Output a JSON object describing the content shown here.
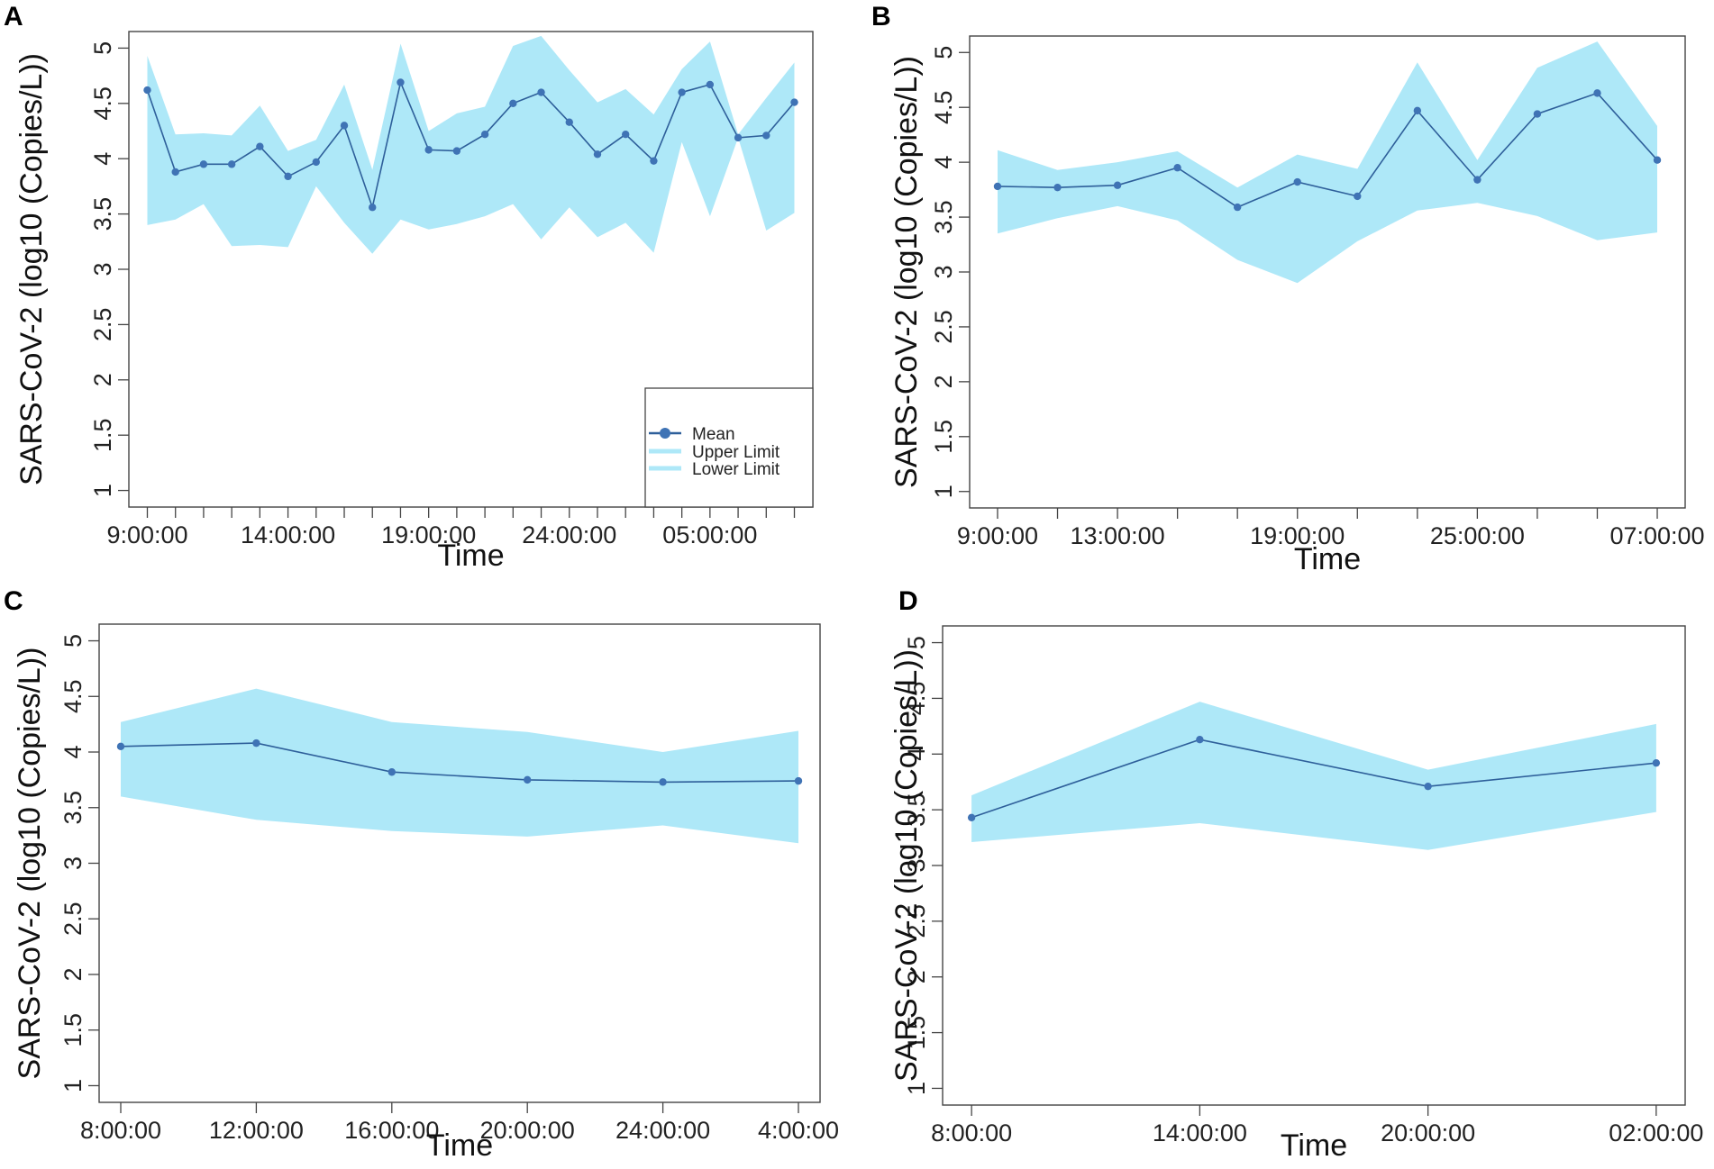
{
  "colors": {
    "band": "#aee8f8",
    "mean_line": "#2e5f9a",
    "mean_marker": "#3f73b5",
    "axis": "#444444"
  },
  "chart_data": [
    {
      "panel": "A",
      "type": "line",
      "title": "",
      "xlabel": "Time",
      "ylabel": "SARS-CoV-2 (log10 (Copies/L))",
      "ylim": [
        0.85,
        5.15
      ],
      "yticks": [
        1,
        1.5,
        2,
        2.5,
        3,
        3.5,
        4,
        4.5,
        5
      ],
      "ytick_labels": [
        "1",
        "1.5",
        "2",
        "2.5",
        "3",
        "3.5",
        "4",
        "4.5",
        "5"
      ],
      "x_count": 24,
      "xticks": [
        0,
        1,
        2,
        3,
        4,
        5,
        6,
        7,
        8,
        9,
        10,
        11,
        12,
        13,
        14,
        15,
        16,
        17,
        18,
        19,
        20,
        21,
        22,
        23
      ],
      "xtick_labels": [
        "9:00:00",
        "",
        "",
        "",
        "",
        "14:00:00",
        "",
        "",
        "",
        "",
        "19:00:00",
        "",
        "",
        "",
        "",
        "24:00:00",
        "",
        "",
        "",
        "",
        "05:00:00",
        "",
        "",
        ""
      ],
      "series": [
        {
          "name": "Mean",
          "values": [
            4.62,
            3.88,
            3.95,
            3.95,
            4.11,
            3.84,
            3.97,
            4.3,
            3.56,
            4.69,
            4.08,
            4.07,
            4.22,
            4.5,
            4.6,
            4.33,
            4.04,
            4.22,
            3.98,
            4.6,
            4.67,
            4.19,
            4.21,
            4.51
          ]
        },
        {
          "name": "Upper Limit",
          "values": [
            4.93,
            4.22,
            4.23,
            4.21,
            4.48,
            4.07,
            4.17,
            4.67,
            3.9,
            5.04,
            4.25,
            4.41,
            4.47,
            5.02,
            5.11,
            4.8,
            4.51,
            4.63,
            4.4,
            4.81,
            5.06,
            4.22,
            4.55,
            4.87
          ]
        },
        {
          "name": "Lower Limit",
          "values": [
            3.4,
            3.45,
            3.59,
            3.21,
            3.22,
            3.2,
            3.75,
            3.42,
            3.14,
            3.45,
            3.36,
            3.41,
            3.48,
            3.59,
            3.27,
            3.56,
            3.29,
            3.42,
            3.15,
            4.15,
            3.48,
            4.19,
            3.35,
            3.51
          ]
        }
      ],
      "legend": {
        "position": "bottom-right",
        "entries": [
          "Mean",
          "Upper Limit",
          "Lower Limit"
        ]
      }
    },
    {
      "panel": "B",
      "type": "line",
      "title": "",
      "xlabel": "Time",
      "ylabel": "SARS-CoV-2 (log10 (Copies/L))",
      "ylim": [
        0.85,
        5.15
      ],
      "yticks": [
        1,
        1.5,
        2,
        2.5,
        3,
        3.5,
        4,
        4.5,
        5
      ],
      "ytick_labels": [
        "1",
        "1.5",
        "2",
        "2.5",
        "3",
        "3.5",
        "4",
        "4.5",
        "5"
      ],
      "x_count": 12,
      "xticks": [
        0,
        1,
        2,
        3,
        4,
        5,
        6,
        7,
        8,
        9,
        10,
        11
      ],
      "xtick_labels": [
        "9:00:00",
        "",
        "13:00:00",
        "",
        "",
        "19:00:00",
        "",
        "",
        "25:00:00",
        "",
        "",
        "07:00:00"
      ],
      "series": [
        {
          "name": "Mean",
          "values": [
            3.78,
            3.77,
            3.79,
            3.95,
            3.59,
            3.82,
            3.69,
            4.47,
            3.84,
            4.44,
            4.63,
            4.02
          ]
        },
        {
          "name": "Upper Limit",
          "values": [
            4.11,
            3.93,
            4.0,
            4.1,
            3.77,
            4.07,
            3.94,
            4.91,
            4.02,
            4.86,
            5.1,
            4.33
          ]
        },
        {
          "name": "Lower Limit",
          "values": [
            3.35,
            3.49,
            3.6,
            3.47,
            3.11,
            2.9,
            3.28,
            3.56,
            3.63,
            3.51,
            3.29,
            3.36
          ]
        }
      ]
    },
    {
      "panel": "C",
      "type": "line",
      "title": "",
      "xlabel": "Time",
      "ylabel": "SARS-CoV-2 (log10 (Copies/L))",
      "ylim": [
        0.85,
        5.15
      ],
      "yticks": [
        1,
        1.5,
        2,
        2.5,
        3,
        3.5,
        4,
        4.5,
        5
      ],
      "ytick_labels": [
        "1",
        "1.5",
        "2",
        "2.5",
        "3",
        "3.5",
        "4",
        "4.5",
        "5"
      ],
      "x_count": 6,
      "xticks": [
        0,
        1,
        2,
        3,
        4,
        5
      ],
      "xtick_labels": [
        "8:00:00",
        "12:00:00",
        "16:00:00",
        "20:00:00",
        "24:00:00",
        "4:00:00"
      ],
      "series": [
        {
          "name": "Mean",
          "values": [
            4.05,
            4.08,
            3.82,
            3.75,
            3.73,
            3.74
          ]
        },
        {
          "name": "Upper Limit",
          "values": [
            4.27,
            4.57,
            4.27,
            4.18,
            4.0,
            4.19
          ]
        },
        {
          "name": "Lower Limit",
          "values": [
            3.6,
            3.39,
            3.29,
            3.24,
            3.34,
            3.18
          ]
        }
      ]
    },
    {
      "panel": "D",
      "type": "line",
      "title": "",
      "xlabel": "Time",
      "ylabel": "SARS-CoV-2 (log10 (Copies/L))",
      "ylim": [
        0.85,
        5.15
      ],
      "yticks": [
        1,
        1.5,
        2,
        2.5,
        3,
        3.5,
        4,
        4.5,
        5
      ],
      "ytick_labels": [
        "1",
        "1.5",
        "2",
        "2.5",
        "3",
        "3.5",
        "4",
        "4.5",
        "5"
      ],
      "x_count": 4,
      "xticks": [
        0,
        1,
        2,
        3
      ],
      "xtick_labels": [
        "8:00:00",
        "14:00:00",
        "20:00:00",
        "02:00:00"
      ],
      "series": [
        {
          "name": "Mean",
          "values": [
            3.43,
            4.13,
            3.71,
            3.92
          ]
        },
        {
          "name": "Upper Limit",
          "values": [
            3.63,
            4.47,
            3.86,
            4.27
          ]
        },
        {
          "name": "Lower Limit",
          "values": [
            3.21,
            3.38,
            3.14,
            3.48
          ]
        }
      ]
    }
  ]
}
